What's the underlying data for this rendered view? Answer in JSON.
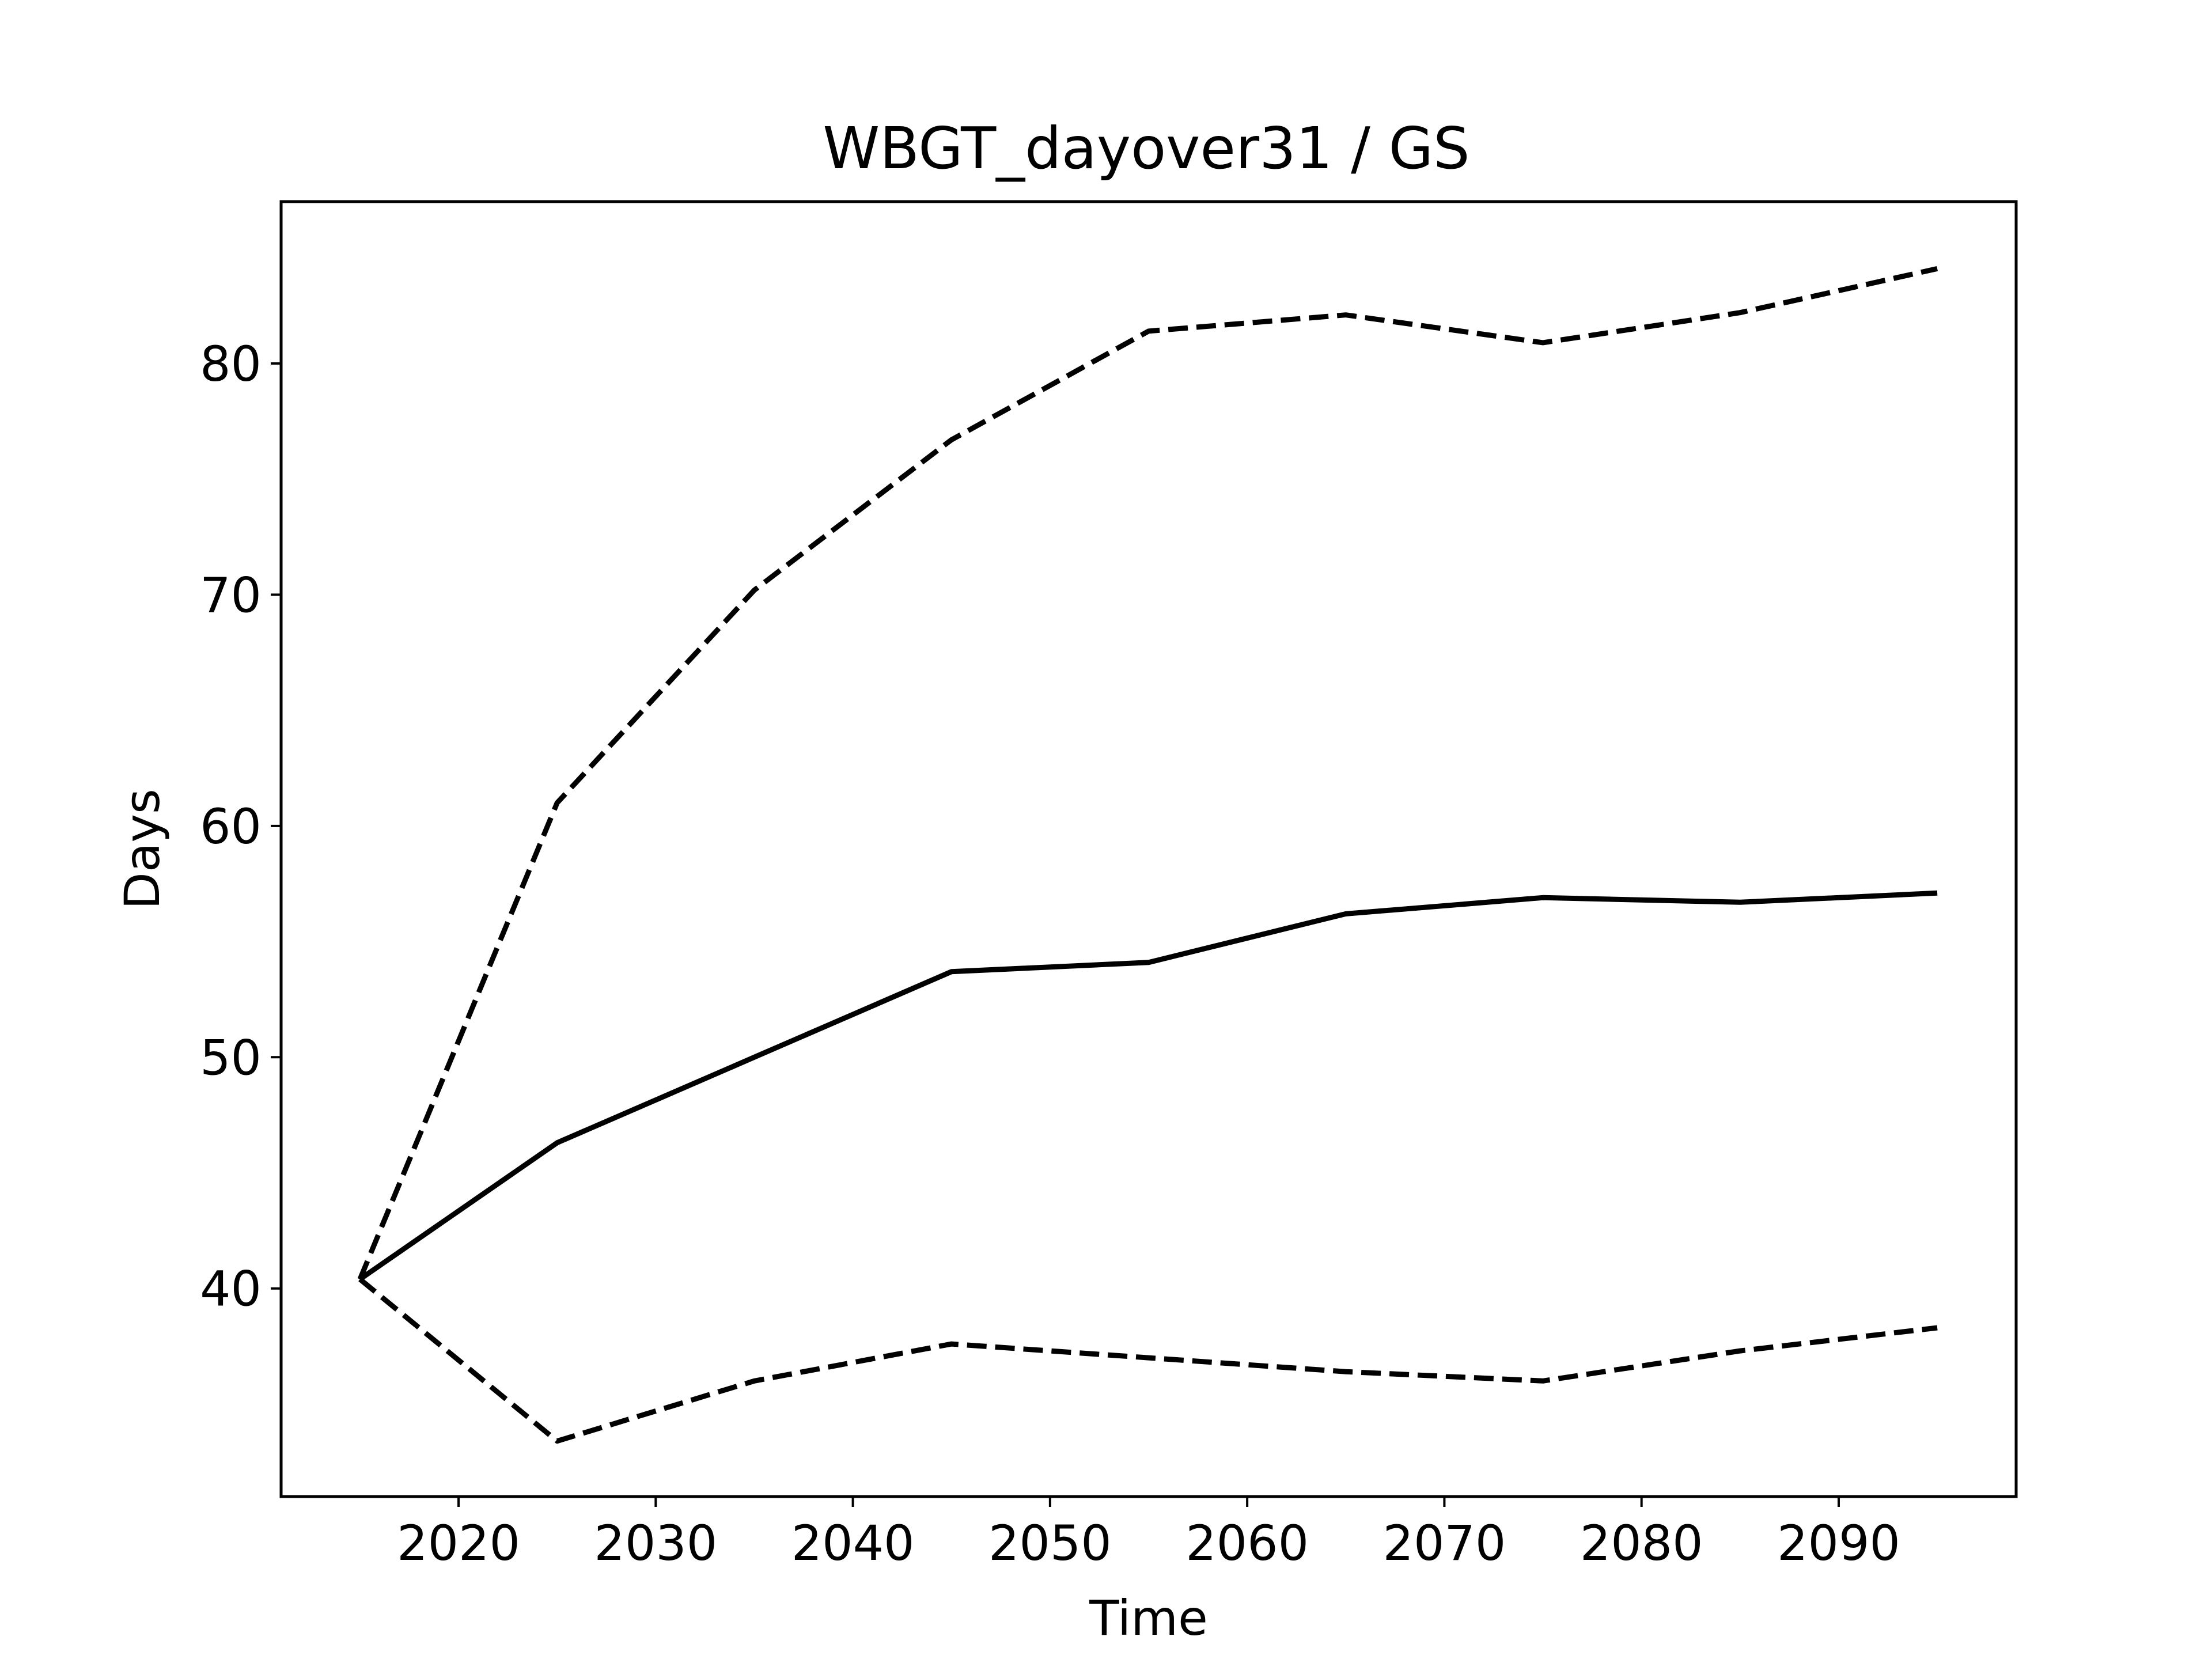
{
  "chart_data": {
    "type": "line",
    "title": "WBGT_dayover31 / GS",
    "xlabel": "Time",
    "ylabel": "Days",
    "xlim": [
      2011,
      2099
    ],
    "ylim": [
      31,
      87
    ],
    "xticks": [
      2020,
      2030,
      2040,
      2050,
      2060,
      2070,
      2080,
      2090
    ],
    "yticks": [
      40,
      50,
      60,
      70,
      80
    ],
    "x": [
      2015,
      2025,
      2035,
      2045,
      2055,
      2065,
      2075,
      2085,
      2095
    ],
    "series": [
      {
        "style": "dashed",
        "color": "#000000",
        "values": [
          40.4,
          61.0,
          70.2,
          76.7,
          81.4,
          82.1,
          80.9,
          82.2,
          84.1
        ]
      },
      {
        "style": "solid",
        "color": "#000000",
        "values": [
          40.4,
          46.3,
          50.0,
          53.7,
          54.1,
          56.2,
          56.9,
          56.7,
          57.1
        ]
      },
      {
        "style": "dashed",
        "color": "#000000",
        "values": [
          40.4,
          33.4,
          36.0,
          37.6,
          37.0,
          36.4,
          36.0,
          37.3,
          38.3
        ]
      }
    ],
    "grid": false,
    "legend": "none"
  }
}
